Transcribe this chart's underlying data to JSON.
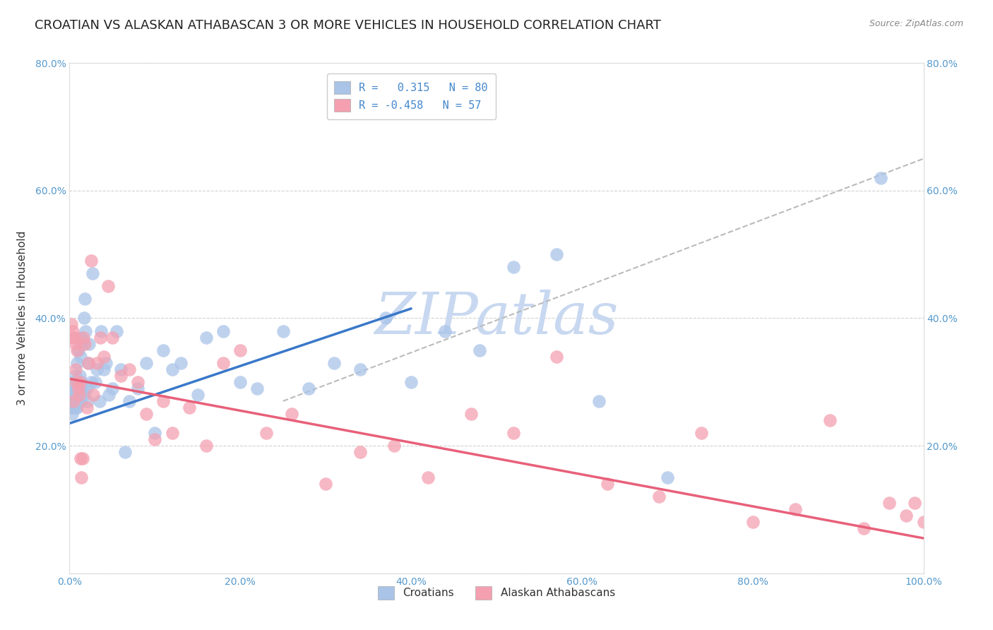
{
  "title": "CROATIAN VS ALASKAN ATHABASCAN 3 OR MORE VEHICLES IN HOUSEHOLD CORRELATION CHART",
  "source_text": "Source: ZipAtlas.com",
  "ylabel": "3 or more Vehicles in Household",
  "xlim": [
    0.0,
    1.0
  ],
  "ylim": [
    0.0,
    0.8
  ],
  "xticks": [
    0.0,
    0.2,
    0.4,
    0.6,
    0.8,
    1.0
  ],
  "xticklabels": [
    "0.0%",
    "20.0%",
    "40.0%",
    "60.0%",
    "80.0%",
    "100.0%"
  ],
  "yticks": [
    0.0,
    0.2,
    0.4,
    0.6,
    0.8
  ],
  "yticklabels": [
    "",
    "20.0%",
    "40.0%",
    "60.0%",
    "80.0%"
  ],
  "right_yticklabels": [
    "",
    "20.0%",
    "40.0%",
    "60.0%",
    "80.0%"
  ],
  "watermark": "ZIPatlas",
  "watermark_color": "#c8d8f0",
  "background_color": "#ffffff",
  "grid_color": "#cccccc",
  "croatian_color": "#aac4e8",
  "athabascan_color": "#f4a0b0",
  "croatian_line_color": "#3a78c9",
  "athabascan_line_color": "#e8607a",
  "dashed_line_color": "#bbbbbb",
  "legend_label1": "Croatians",
  "legend_label2": "Alaskan Athabascans",
  "title_fontsize": 13,
  "axis_label_fontsize": 11,
  "tick_fontsize": 10,
  "legend_fontsize": 11,
  "croatian_scatter_x": [
    0.002,
    0.002,
    0.003,
    0.003,
    0.003,
    0.004,
    0.004,
    0.004,
    0.005,
    0.005,
    0.005,
    0.006,
    0.006,
    0.006,
    0.007,
    0.007,
    0.007,
    0.008,
    0.008,
    0.008,
    0.009,
    0.009,
    0.01,
    0.01,
    0.01,
    0.011,
    0.012,
    0.012,
    0.013,
    0.013,
    0.014,
    0.014,
    0.015,
    0.015,
    0.016,
    0.017,
    0.018,
    0.019,
    0.02,
    0.021,
    0.022,
    0.023,
    0.025,
    0.027,
    0.03,
    0.032,
    0.035,
    0.037,
    0.04,
    0.043,
    0.046,
    0.05,
    0.055,
    0.06,
    0.065,
    0.07,
    0.08,
    0.09,
    0.1,
    0.11,
    0.12,
    0.13,
    0.15,
    0.16,
    0.18,
    0.2,
    0.22,
    0.25,
    0.28,
    0.31,
    0.34,
    0.37,
    0.4,
    0.44,
    0.48,
    0.52,
    0.57,
    0.62,
    0.7,
    0.95
  ],
  "croatian_scatter_y": [
    0.26,
    0.27,
    0.25,
    0.28,
    0.26,
    0.27,
    0.29,
    0.26,
    0.27,
    0.28,
    0.3,
    0.26,
    0.28,
    0.27,
    0.29,
    0.31,
    0.26,
    0.28,
    0.3,
    0.27,
    0.33,
    0.26,
    0.28,
    0.3,
    0.35,
    0.27,
    0.31,
    0.29,
    0.34,
    0.27,
    0.3,
    0.37,
    0.29,
    0.36,
    0.28,
    0.4,
    0.43,
    0.38,
    0.29,
    0.27,
    0.33,
    0.36,
    0.3,
    0.47,
    0.3,
    0.32,
    0.27,
    0.38,
    0.32,
    0.33,
    0.28,
    0.29,
    0.38,
    0.32,
    0.19,
    0.27,
    0.29,
    0.33,
    0.22,
    0.35,
    0.32,
    0.33,
    0.28,
    0.37,
    0.38,
    0.3,
    0.29,
    0.38,
    0.29,
    0.33,
    0.32,
    0.4,
    0.3,
    0.38,
    0.35,
    0.48,
    0.5,
    0.27,
    0.15,
    0.62
  ],
  "athabascan_scatter_x": [
    0.002,
    0.003,
    0.004,
    0.005,
    0.006,
    0.007,
    0.007,
    0.008,
    0.009,
    0.01,
    0.011,
    0.012,
    0.013,
    0.014,
    0.015,
    0.016,
    0.018,
    0.02,
    0.022,
    0.025,
    0.028,
    0.032,
    0.036,
    0.04,
    0.045,
    0.05,
    0.06,
    0.07,
    0.08,
    0.09,
    0.1,
    0.11,
    0.12,
    0.14,
    0.16,
    0.18,
    0.2,
    0.23,
    0.26,
    0.3,
    0.34,
    0.38,
    0.42,
    0.47,
    0.52,
    0.57,
    0.63,
    0.69,
    0.74,
    0.8,
    0.85,
    0.89,
    0.93,
    0.96,
    0.98,
    0.99,
    1.0
  ],
  "athabascan_scatter_y": [
    0.39,
    0.37,
    0.38,
    0.27,
    0.37,
    0.32,
    0.36,
    0.3,
    0.35,
    0.29,
    0.28,
    0.3,
    0.18,
    0.15,
    0.18,
    0.37,
    0.36,
    0.26,
    0.33,
    0.49,
    0.28,
    0.33,
    0.37,
    0.34,
    0.45,
    0.37,
    0.31,
    0.32,
    0.3,
    0.25,
    0.21,
    0.27,
    0.22,
    0.26,
    0.2,
    0.33,
    0.35,
    0.22,
    0.25,
    0.14,
    0.19,
    0.2,
    0.15,
    0.25,
    0.22,
    0.34,
    0.14,
    0.12,
    0.22,
    0.08,
    0.1,
    0.24,
    0.07,
    0.11,
    0.09,
    0.11,
    0.08
  ],
  "croatian_line_x0": 0.0,
  "croatian_line_x1": 0.4,
  "croatian_line_y0": 0.235,
  "croatian_line_y1": 0.415,
  "athabascan_line_x0": 0.0,
  "athabascan_line_x1": 1.0,
  "athabascan_line_y0": 0.305,
  "athabascan_line_y1": 0.055,
  "dashed_line_x0": 0.25,
  "dashed_line_x1": 1.0,
  "dashed_line_y0": 0.27,
  "dashed_line_y1": 0.65,
  "figsize": [
    14.06,
    8.92
  ],
  "dpi": 100
}
